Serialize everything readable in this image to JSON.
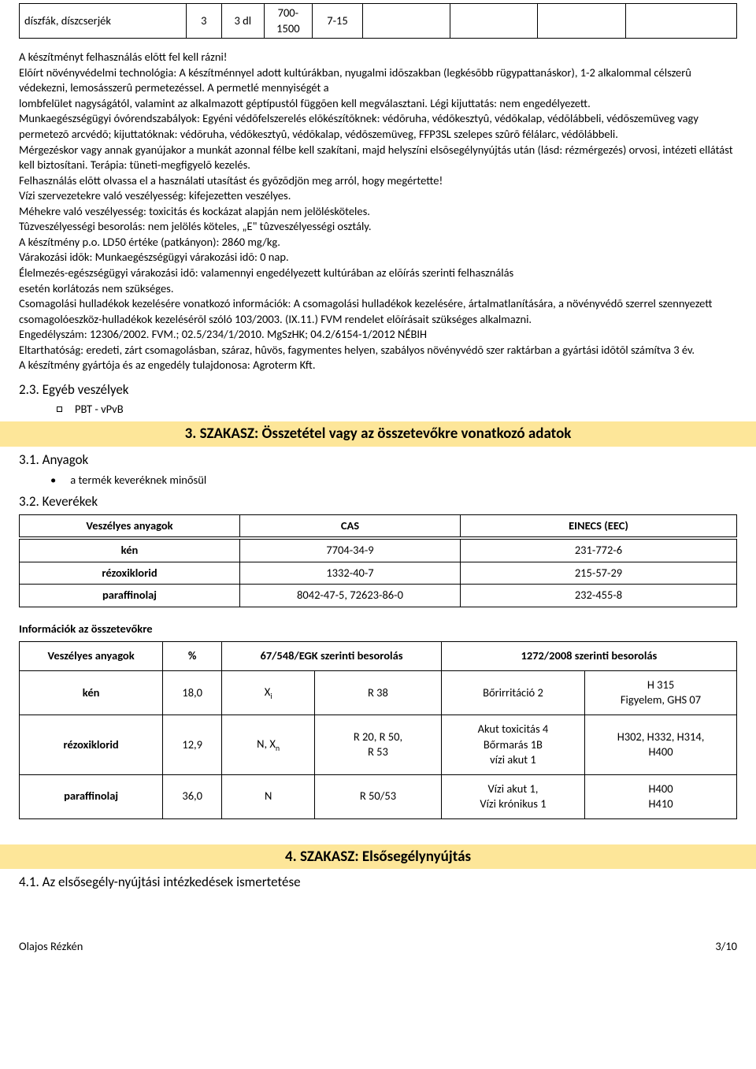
{
  "topTable": {
    "c1": "díszfák, díszcserjék",
    "c2": "3",
    "c3": "3 dl",
    "c4": "700-1500",
    "c5": "7-15",
    "c6": "",
    "c7": "",
    "c8": "",
    "c9": ""
  },
  "body": {
    "p1": "A készítményt felhasználás elõtt fel kell rázni!",
    "p2": "Elõírt növényvédelmi technológia: A készítménnyel adott kultúrákban, nyugalmi idõszakban (legkésõbb rügypattanáskor), 1-2 alkalommal célszerû védekezni, lemosásszerû permetezéssel. A permetlé mennyiségét a",
    "p3": "lombfelület nagyságától, valamint az alkalmazott géptípustól függõen kell megválasztani. Légi kijuttatás: nem engedélyezett.",
    "p4": "Munkaegészségügyi óvórendszabályok: Egyéni védõfelszerelés elõkészítõknek: védõruha, védõkesztyû, védõkalap, védõlábbeli, védõszemüveg vagy permetezõ arcvédõ; kijuttatóknak: védõruha, védõkesztyû, védõkalap, védõszemüveg, FFP3SL szelepes szûrõ félálarc, védõlábbeli.",
    "p5": "Mérgezéskor vagy annak gyanújakor a munkát azonnal félbe kell szakítani, majd helyszíni elsõsegélynyújtás után (lásd: rézmérgezés) orvosi, intézeti ellátást kell biztosítani. Terápia: tüneti-megfigyelõ kezelés.",
    "p6": "Felhasználás elõtt olvassa el a használati utasítást és gyõzõdjön meg arról, hogy megértette!",
    "p7": "Vízi szervezetekre való veszélyesség: kifejezetten veszélyes.",
    "p8": "Méhekre való veszélyesség: toxicitás és kockázat alapján nem jelölésköteles.",
    "p9": "Tûzveszélyességi besorolás: nem jelölés köteles, „E\" tûzveszélyességi osztály.",
    "p10": "A készítmény p.o. LD50 értéke (patkányon): 2860 mg/kg.",
    "p11": "Várakozási idõk: Munkaegészségügyi várakozási idõ: 0 nap.",
    "p12": "Élelmezés-egészségügyi várakozási idõ: valamennyi engedélyezett kultúrában az elõírás szerinti felhasználás",
    "p13": "esetén korlátozás nem szükséges.",
    "p14": "Csomagolási hulladékok kezelésére vonatkozó információk: A csomagolási hulladékok kezelésére, ártalmatlanítására, a növényvédõ szerrel szennyezett csomagolóeszköz-hulladékok kezelésérõl szóló 103/2003. (IX.11.) FVM rendelet elõírásait szükséges alkalmazni.",
    "p15": "Engedélyszám: 12306/2002. FVM.; 02.5/234/1/2010. MgSzHK; 04.2/6154-1/2012 NÉBIH",
    "p16": "Eltarthatóság: eredeti, zárt csomagolásban, száraz, hûvös, fagymentes helyen, szabályos növényvédõ szer raktárban a gyártási idõtõl számítva 3 év.",
    "p17": "A készítmény gyártója és az engedély tulajdonosa: Agroterm Kft."
  },
  "s23": {
    "title": "2.3. Egyéb veszélyek",
    "bullet": "PBT - vPvB"
  },
  "section3": {
    "title": "3. SZAKASZ: Összetétel vagy az összetevőkre vonatkozó adatok",
    "s31": "3.1. Anyagok",
    "s31b": "a termék keveréknek minősül",
    "s32": "3.2. Keverékek"
  },
  "casTable": {
    "headers": {
      "h1": "Veszélyes anyagok",
      "h2": "CAS",
      "h3": "EINECS (EEC)"
    },
    "rows": [
      {
        "name": "kén",
        "cas": "7704-34-9",
        "einecs": "231-772-6"
      },
      {
        "name": "rézoxiklorid",
        "cas": "1332-40-7",
        "einecs": "215-57-29"
      },
      {
        "name": "paraffinolaj",
        "cas": "8042-47-5, 72623-86-0",
        "einecs": "232-455-8"
      }
    ]
  },
  "infoHeader": "Információk az összetevőkre",
  "infoTable": {
    "headers": {
      "h1": "Veszélyes anyagok",
      "h2": "%",
      "h3": "67/548/EGK szerinti besorolás",
      "h4": "1272/2008 szerinti besorolás"
    },
    "rows": [
      {
        "name": "kén",
        "pct": "18,0",
        "sym": "Xi",
        "r": "R 38",
        "c4a": "Bőrirritáció 2",
        "c4b": "H 315\nFigyelem, GHS 07"
      },
      {
        "name": "rézoxiklorid",
        "pct": "12,9",
        "sym": "N, Xn",
        "r": "R 20, R 50,\nR 53",
        "c4a": "Akut toxicitás 4\nBőrmarás 1B\nvízi akut 1",
        "c4b": "H302, H332, H314,\nH400"
      },
      {
        "name": "paraffinolaj",
        "pct": "36,0",
        "sym": "N",
        "r": "R 50/53",
        "c4a": "Vízi akut 1,\nVízi krónikus 1",
        "c4b": "H400\nH410"
      }
    ]
  },
  "section4": {
    "title": "4. SZAKASZ: Elsősegélynyújtás",
    "s41": "4.1. Az elsősegély-nyújtási intézkedések ismertetése"
  },
  "footer": {
    "left": "Olajos Rézkén",
    "right": "3/10"
  }
}
